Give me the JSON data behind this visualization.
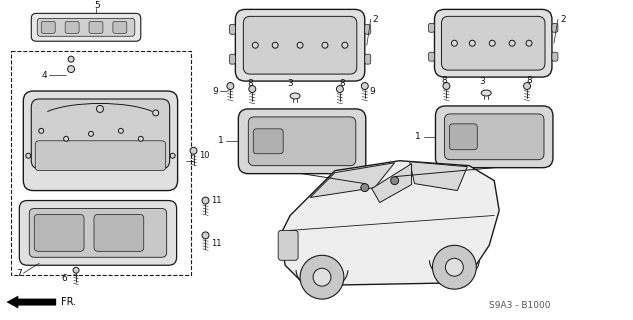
{
  "background": "#ffffff",
  "ref_code": "S9A3 - B1000",
  "line_color": "#1a1a1a",
  "text_color": "#111111",
  "fig_w": 6.33,
  "fig_h": 3.2,
  "dpi": 100
}
